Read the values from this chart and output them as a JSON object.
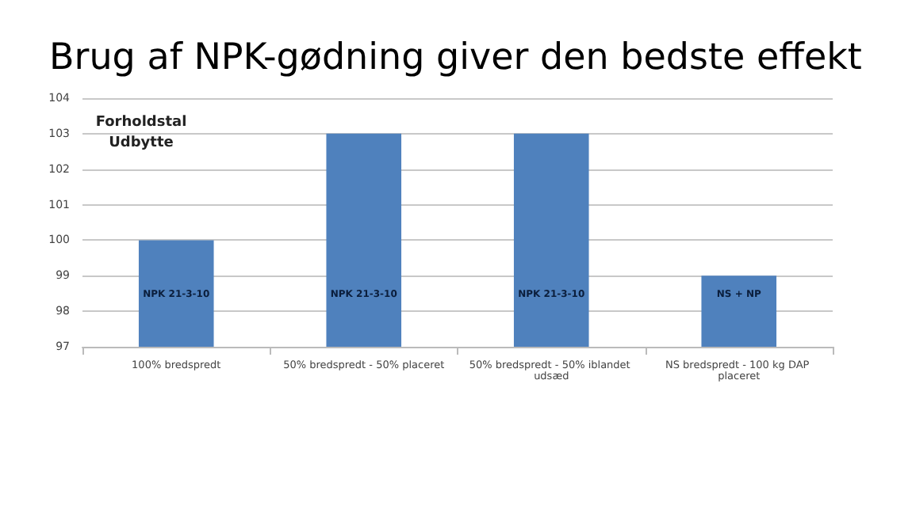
{
  "chart_data": {
    "type": "bar",
    "title": "Brug af NPK-gødning giver den bedste effekt",
    "ylabel": "Forholdstal\nUdbytte",
    "categories": [
      "100% bredspredt",
      "50% bredspredt - 50% placeret",
      "50% bredspredt - 50% iblandet udsæd",
      "NS bredspredt - 100 kg DAP placeret"
    ],
    "values": [
      100,
      103,
      103,
      99
    ],
    "value_labels": [
      "NPK 21-3-10",
      "NPK 21-3-10",
      "NPK 21-3-10",
      "NS + NP"
    ],
    "color": "#4f81bd",
    "ylim": [
      97,
      104
    ],
    "yticks": [
      97,
      98,
      99,
      100,
      101,
      102,
      103,
      104
    ],
    "grid": "y"
  }
}
